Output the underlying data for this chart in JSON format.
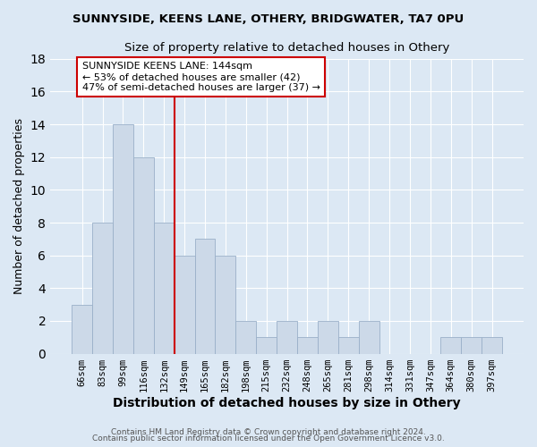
{
  "title": "SUNNYSIDE, KEENS LANE, OTHERY, BRIDGWATER, TA7 0PU",
  "subtitle": "Size of property relative to detached houses in Othery",
  "xlabel": "Distribution of detached houses by size in Othery",
  "ylabel": "Number of detached properties",
  "bar_labels": [
    "66sqm",
    "83sqm",
    "99sqm",
    "116sqm",
    "132sqm",
    "149sqm",
    "165sqm",
    "182sqm",
    "198sqm",
    "215sqm",
    "232sqm",
    "248sqm",
    "265sqm",
    "281sqm",
    "298sqm",
    "314sqm",
    "331sqm",
    "347sqm",
    "364sqm",
    "380sqm",
    "397sqm"
  ],
  "bar_values": [
    3,
    8,
    14,
    12,
    8,
    6,
    7,
    6,
    2,
    1,
    2,
    1,
    2,
    1,
    2,
    0,
    0,
    0,
    1,
    1,
    1
  ],
  "bar_color": "#ccd9e8",
  "bar_edge_color": "#9ab0c8",
  "vline_label": "149sqm",
  "vline_color": "#cc0000",
  "annotation_text": "SUNNYSIDE KEENS LANE: 144sqm\n← 53% of detached houses are smaller (42)\n47% of semi-detached houses are larger (37) →",
  "annotation_box_color": "#ffffff",
  "annotation_box_edge": "#cc0000",
  "ylim": [
    0,
    18
  ],
  "yticks": [
    0,
    2,
    4,
    6,
    8,
    10,
    12,
    14,
    16,
    18
  ],
  "footer1": "Contains HM Land Registry data © Crown copyright and database right 2024.",
  "footer2": "Contains public sector information licensed under the Open Government Licence v3.0.",
  "background_color": "#dce8f4",
  "plot_background": "#dce8f4",
  "grid_color": "#ffffff",
  "figsize": [
    6.0,
    5.0
  ],
  "dpi": 100
}
